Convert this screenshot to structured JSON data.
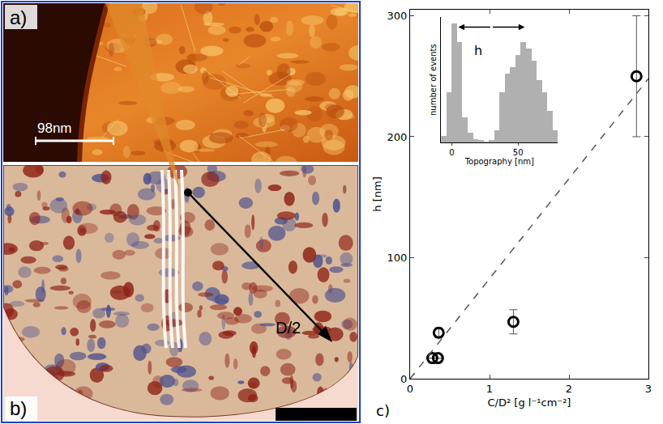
{
  "panels": [
    {
      "label": "a)",
      "scale_bar": "98nm"
    },
    {
      "label": "b)",
      "annotation": "D/2"
    }
  ],
  "chart_data": [
    {
      "type": "scatter",
      "label": "c)",
      "x_label": "C/D² [g l⁻¹cm⁻²]",
      "y_label": "h [nm]",
      "xlim": [
        0,
        3
      ],
      "ylim": [
        0,
        305
      ],
      "xticks": [
        0,
        1,
        2,
        3
      ],
      "yticks": [
        0,
        100,
        200,
        300
      ],
      "series": [
        {
          "type": "scatter",
          "marker": "open_circle",
          "color": "#000000",
          "x": [
            0.28,
            0.35,
            0.36,
            1.3,
            2.85
          ],
          "values": [
            17,
            17,
            38,
            47,
            250
          ],
          "errors": [
            0,
            0,
            4,
            10,
            50
          ]
        },
        {
          "type": "line",
          "line_style": "dashed",
          "color": "#555555",
          "x": [
            0,
            3
          ],
          "values": [
            0,
            248
          ]
        }
      ]
    },
    {
      "type": "histogram",
      "x_label": "Topography [nm]",
      "y_label": "number of events",
      "bins": [
        -8,
        -4,
        0,
        4,
        8,
        12,
        16,
        20,
        24,
        28,
        32,
        36,
        40,
        44,
        48,
        52,
        56,
        60,
        64,
        68,
        72,
        76,
        80
      ],
      "values": [
        5,
        40,
        95,
        80,
        20,
        8,
        3,
        2,
        1,
        2,
        10,
        40,
        55,
        60,
        70,
        80,
        75,
        65,
        50,
        40,
        25,
        10
      ],
      "xlim": [
        -8,
        80
      ],
      "xticks": [
        0,
        50
      ],
      "ylim": [
        0,
        100
      ],
      "tick_labels": "x",
      "color": "#b0b0b0",
      "annotations": [
        {
          "text": "h",
          "x": [
            5,
            55
          ],
          "y": 92
        }
      ]
    }
  ]
}
